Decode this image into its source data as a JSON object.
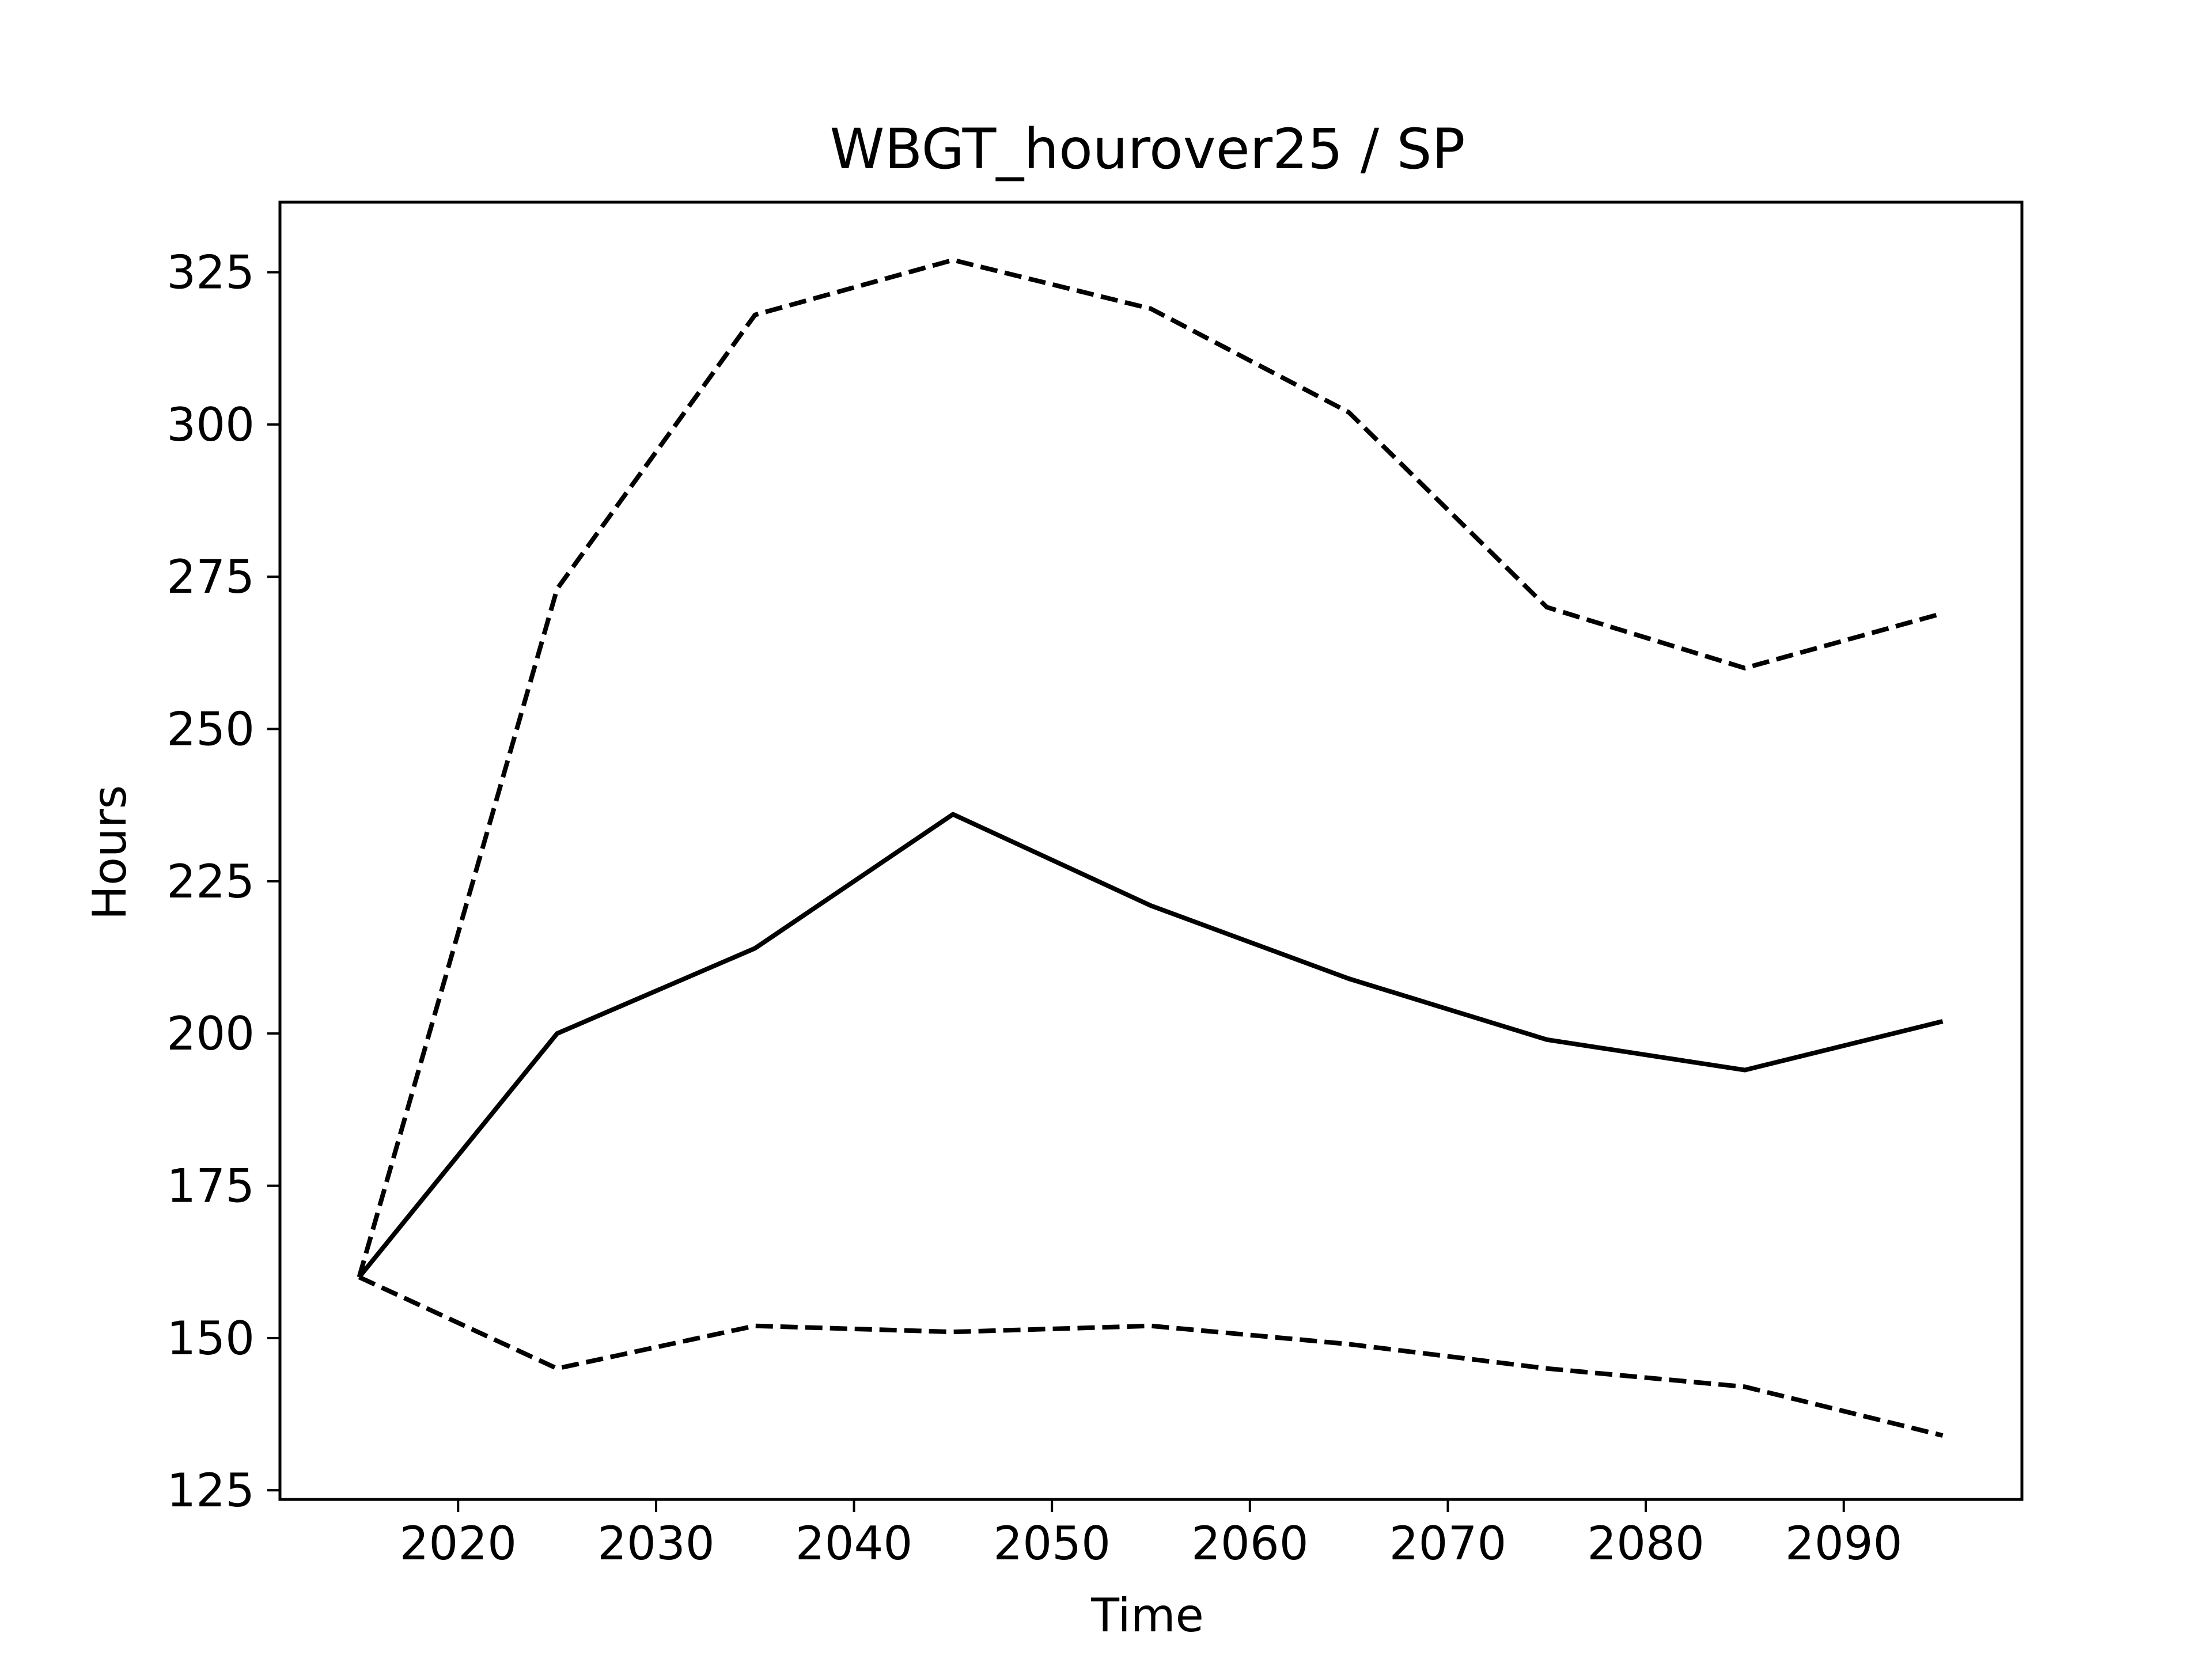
{
  "chart_data": {
    "type": "line",
    "title": "WBGT_hourover25 / SP",
    "xlabel": "Time",
    "ylabel": "Hours",
    "xlim": [
      2011,
      2099
    ],
    "ylim": [
      123.5,
      336.5
    ],
    "xticks": [
      2020,
      2030,
      2040,
      2050,
      2060,
      2070,
      2080,
      2090
    ],
    "yticks": [
      125,
      150,
      175,
      200,
      225,
      250,
      275,
      300,
      325
    ],
    "grid": false,
    "legend": "none",
    "x": [
      2015,
      2025,
      2035,
      2045,
      2055,
      2065,
      2075,
      2085,
      2095
    ],
    "series": [
      {
        "style": "solid",
        "color": "#000000",
        "values": [
          160,
          200,
          214,
          236,
          221,
          209,
          199,
          194,
          202
        ]
      },
      {
        "style": "dashed",
        "color": "#000000",
        "values": [
          160,
          273,
          318,
          327,
          319,
          302,
          270,
          260,
          269
        ]
      },
      {
        "style": "dashed",
        "color": "#000000",
        "values": [
          160,
          145,
          152,
          151,
          152,
          149,
          145,
          142,
          134
        ]
      }
    ]
  }
}
